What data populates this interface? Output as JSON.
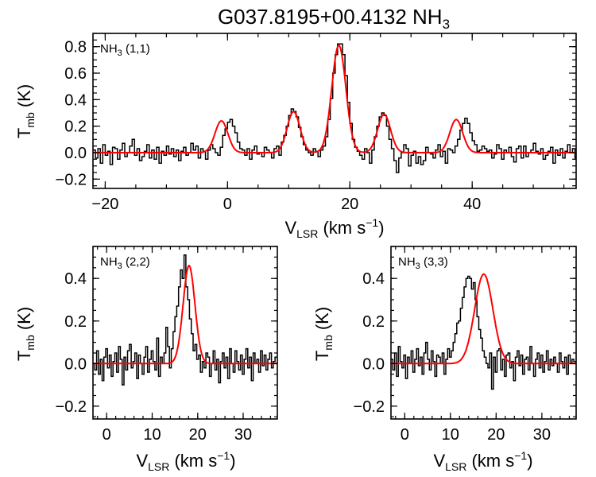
{
  "title": {
    "text": "G037.8195+00.4132 NH",
    "sub": "3"
  },
  "colors": {
    "observed": "#000000",
    "fit": "#ff0000"
  },
  "chart_data": [
    {
      "type": "line",
      "panel_label": {
        "pre": "NH",
        "sub": "3",
        "post": " (1,1)"
      },
      "xlabel": {
        "pre": "V",
        "sub": "LSR",
        "post": " (km s",
        "sup": "−1",
        "end": ")"
      },
      "ylabel": {
        "pre": "T",
        "sub": "mb",
        "post": " (K)"
      },
      "xlim": [
        -22,
        57
      ],
      "ylim": [
        -0.27,
        0.9
      ],
      "xticks": [
        -20,
        0,
        20,
        40
      ],
      "xtick_labels": [
        "−20",
        "0",
        "20",
        "40"
      ],
      "yticks": [
        -0.2,
        0.0,
        0.2,
        0.4,
        0.6,
        0.8
      ],
      "ytick_labels": [
        "−0.2",
        "0.0",
        "0.2",
        "0.4",
        "0.6",
        "0.8"
      ],
      "x_minor_step": 5,
      "y_minor_step": 0.05,
      "fit_components": [
        {
          "center": -1.0,
          "amplitude": 0.24,
          "sigma": 1.05
        },
        {
          "center": 10.8,
          "amplitude": 0.31,
          "sigma": 1.05
        },
        {
          "center": 18.2,
          "amplitude": 0.81,
          "sigma": 1.15
        },
        {
          "center": 25.6,
          "amplitude": 0.29,
          "sigma": 1.05
        },
        {
          "center": 37.4,
          "amplitude": 0.25,
          "sigma": 1.05
        }
      ],
      "observed": {
        "x_start": -22,
        "x_step": 0.4,
        "y": [
          0.02,
          -0.04,
          0.03,
          -0.08,
          0.06,
          -0.02,
          0.01,
          -0.09,
          0.04,
          0.03,
          -0.05,
          0.02,
          0.07,
          -0.03,
          0.0,
          0.05,
          0.1,
          -0.02,
          0.03,
          -0.06,
          -0.03,
          0.01,
          0.06,
          -0.04,
          0.02,
          -0.05,
          0.04,
          -0.08,
          0.01,
          -0.02,
          0.05,
          -0.01,
          0.03,
          -0.03,
          0.02,
          -0.06,
          0.01,
          0.04,
          -0.02,
          0.0,
          0.07,
          0.02,
          0.05,
          -0.04,
          0.03,
          0.01,
          -0.05,
          0.02,
          0.06,
          0.03,
          0.0,
          -0.02,
          0.04,
          0.13,
          0.18,
          0.23,
          0.25,
          0.2,
          0.15,
          0.08,
          0.03,
          0.02,
          -0.02,
          0.03,
          -0.05,
          0.02,
          0.05,
          -0.01,
          0.0,
          -0.03,
          0.04,
          0.02,
          0.0,
          -0.04,
          0.03,
          0.05,
          -0.02,
          0.08,
          0.13,
          0.2,
          0.28,
          0.33,
          0.31,
          0.27,
          0.19,
          0.12,
          0.06,
          0.02,
          0.0,
          -0.02,
          0.03,
          0.01,
          -0.03,
          0.02,
          0.05,
          0.12,
          0.25,
          0.41,
          0.6,
          0.74,
          0.82,
          0.82,
          0.74,
          0.58,
          0.38,
          0.22,
          0.1,
          0.04,
          0.01,
          -0.02,
          -0.05,
          0.03,
          0.0,
          -0.08,
          0.02,
          0.12,
          0.2,
          0.27,
          0.3,
          0.28,
          0.2,
          0.1,
          0.03,
          -0.06,
          -0.15,
          -0.04,
          0.0,
          0.06,
          0.03,
          -0.1,
          -0.02,
          0.01,
          -0.08,
          -0.03,
          -0.09,
          -0.06,
          0.04,
          0.0,
          -0.01,
          -0.04,
          0.02,
          0.06,
          -0.03,
          0.01,
          -0.08,
          0.03,
          0.02,
          0.0,
          0.05,
          0.1,
          0.17,
          0.22,
          0.26,
          0.22,
          0.15,
          0.09,
          0.06,
          0.01,
          0.02,
          0.05,
          0.03,
          0.01,
          0.02,
          -0.04,
          -0.01,
          0.06,
          0.03,
          -0.05,
          0.02,
          0.0,
          0.04,
          -0.03,
          -0.07,
          0.03,
          0.05,
          -0.04,
          0.05,
          -0.03,
          0.0,
          0.02,
          0.07,
          0.01,
          -0.01,
          0.03,
          -0.05,
          -0.02,
          0.01,
          0.04,
          -0.08,
          0.02,
          -0.02,
          0.03,
          -0.04,
          0.01,
          0.06,
          0.0,
          0.03,
          -0.04,
          0.0,
          -0.02
        ]
      }
    },
    {
      "type": "line",
      "panel_label": {
        "pre": "NH",
        "sub": "3",
        "post": " (2,2)"
      },
      "xlabel": {
        "pre": "V",
        "sub": "LSR",
        "post": " (km s",
        "sup": "−1",
        "end": ")"
      },
      "ylabel": {
        "pre": "T",
        "sub": "mb",
        "post": " (K)"
      },
      "xlim": [
        -3,
        37.5
      ],
      "ylim": [
        -0.26,
        0.55
      ],
      "xticks": [
        0,
        10,
        20,
        30
      ],
      "xtick_labels": [
        "0",
        "10",
        "20",
        "30"
      ],
      "yticks": [
        -0.2,
        0.0,
        0.2,
        0.4
      ],
      "ytick_labels": [
        "−0.2",
        "0.0",
        "0.2",
        "0.4"
      ],
      "x_minor_step": 2,
      "y_minor_step": 0.05,
      "fit_components": [
        {
          "center": 18.1,
          "amplitude": 0.46,
          "sigma": 1.3
        }
      ],
      "observed": {
        "x_start": -3,
        "x_step": 0.4,
        "y": [
          0.0,
          -0.03,
          0.06,
          -0.05,
          0.02,
          -0.08,
          0.03,
          0.07,
          -0.02,
          0.04,
          -0.06,
          0.01,
          0.05,
          -0.04,
          0.08,
          0.02,
          -0.1,
          0.03,
          -0.03,
          0.06,
          0.09,
          -0.02,
          0.01,
          0.05,
          -0.07,
          0.04,
          0.0,
          -0.05,
          0.03,
          0.08,
          -0.04,
          0.02,
          0.06,
          0.01,
          -0.03,
          0.12,
          -0.06,
          0.03,
          0.0,
          0.05,
          0.17,
          0.08,
          -0.02,
          0.07,
          0.15,
          0.22,
          0.27,
          0.36,
          0.44,
          0.4,
          0.51,
          0.36,
          0.3,
          0.21,
          0.14,
          0.06,
          0.09,
          0.02,
          0.04,
          -0.04,
          0.01,
          -0.02,
          0.05,
          0.03,
          -0.06,
          0.0,
          0.06,
          -0.03,
          0.02,
          -0.09,
          0.01,
          0.05,
          -0.02,
          0.03,
          -0.07,
          0.07,
          0.0,
          -0.04,
          0.06,
          0.01,
          -0.03,
          0.04,
          -0.05,
          0.02,
          0.07,
          -0.02,
          0.03,
          -0.08,
          0.05,
          0.0,
          0.02,
          -0.04,
          0.06,
          -0.01,
          0.04,
          -0.03,
          0.02,
          0.05,
          -0.02,
          0.01,
          0.03
        ]
      }
    },
    {
      "type": "line",
      "panel_label": {
        "pre": "NH",
        "sub": "3",
        "post": " (3,3)"
      },
      "xlabel": {
        "pre": "V",
        "sub": "LSR",
        "post": " (km s",
        "sup": "−1",
        "end": ")"
      },
      "ylabel": {
        "pre": "T",
        "sub": "mb",
        "post": " (K)"
      },
      "xlim": [
        -3,
        37.5
      ],
      "ylim": [
        -0.26,
        0.55
      ],
      "xticks": [
        0,
        10,
        20,
        30
      ],
      "xtick_labels": [
        "0",
        "10",
        "20",
        "30"
      ],
      "yticks": [
        -0.2,
        0.0,
        0.2,
        0.4
      ],
      "ytick_labels": [
        "−0.2",
        "0.0",
        "0.2",
        "0.4"
      ],
      "x_minor_step": 2,
      "y_minor_step": 0.05,
      "fit_components": [
        {
          "center": 17.3,
          "amplitude": 0.42,
          "sigma": 2.0
        }
      ],
      "observed": {
        "x_start": -3,
        "x_step": 0.4,
        "y": [
          0.02,
          -0.03,
          0.05,
          -0.06,
          0.08,
          0.01,
          -0.02,
          0.04,
          -0.07,
          0.03,
          0.0,
          0.06,
          -0.04,
          0.02,
          0.07,
          -0.01,
          0.03,
          -0.05,
          0.05,
          0.1,
          0.02,
          -0.03,
          0.06,
          0.01,
          -0.06,
          0.04,
          0.03,
          0.0,
          0.05,
          -0.05,
          0.02,
          0.07,
          0.03,
          0.06,
          0.1,
          0.14,
          0.19,
          0.2,
          0.26,
          0.31,
          0.36,
          0.4,
          0.41,
          0.4,
          0.35,
          0.38,
          0.3,
          0.22,
          0.16,
          0.12,
          0.06,
          0.03,
          0.0,
          -0.02,
          0.05,
          -0.12,
          0.03,
          -0.04,
          0.06,
          0.07,
          -0.03,
          0.02,
          -0.06,
          0.04,
          0.05,
          -0.02,
          0.01,
          -0.08,
          0.03,
          0.06,
          -0.01,
          0.04,
          -0.05,
          0.02,
          0.03,
          -0.03,
          0.08,
          0.0,
          -0.06,
          0.02,
          0.05,
          -0.02,
          0.04,
          -0.04,
          0.01,
          0.06,
          -0.03,
          0.02,
          -0.01,
          0.03,
          0.0,
          -0.04,
          0.05,
          0.01,
          -0.02,
          0.03,
          -0.05,
          0.04,
          0.0,
          0.02,
          0.01
        ]
      }
    }
  ]
}
